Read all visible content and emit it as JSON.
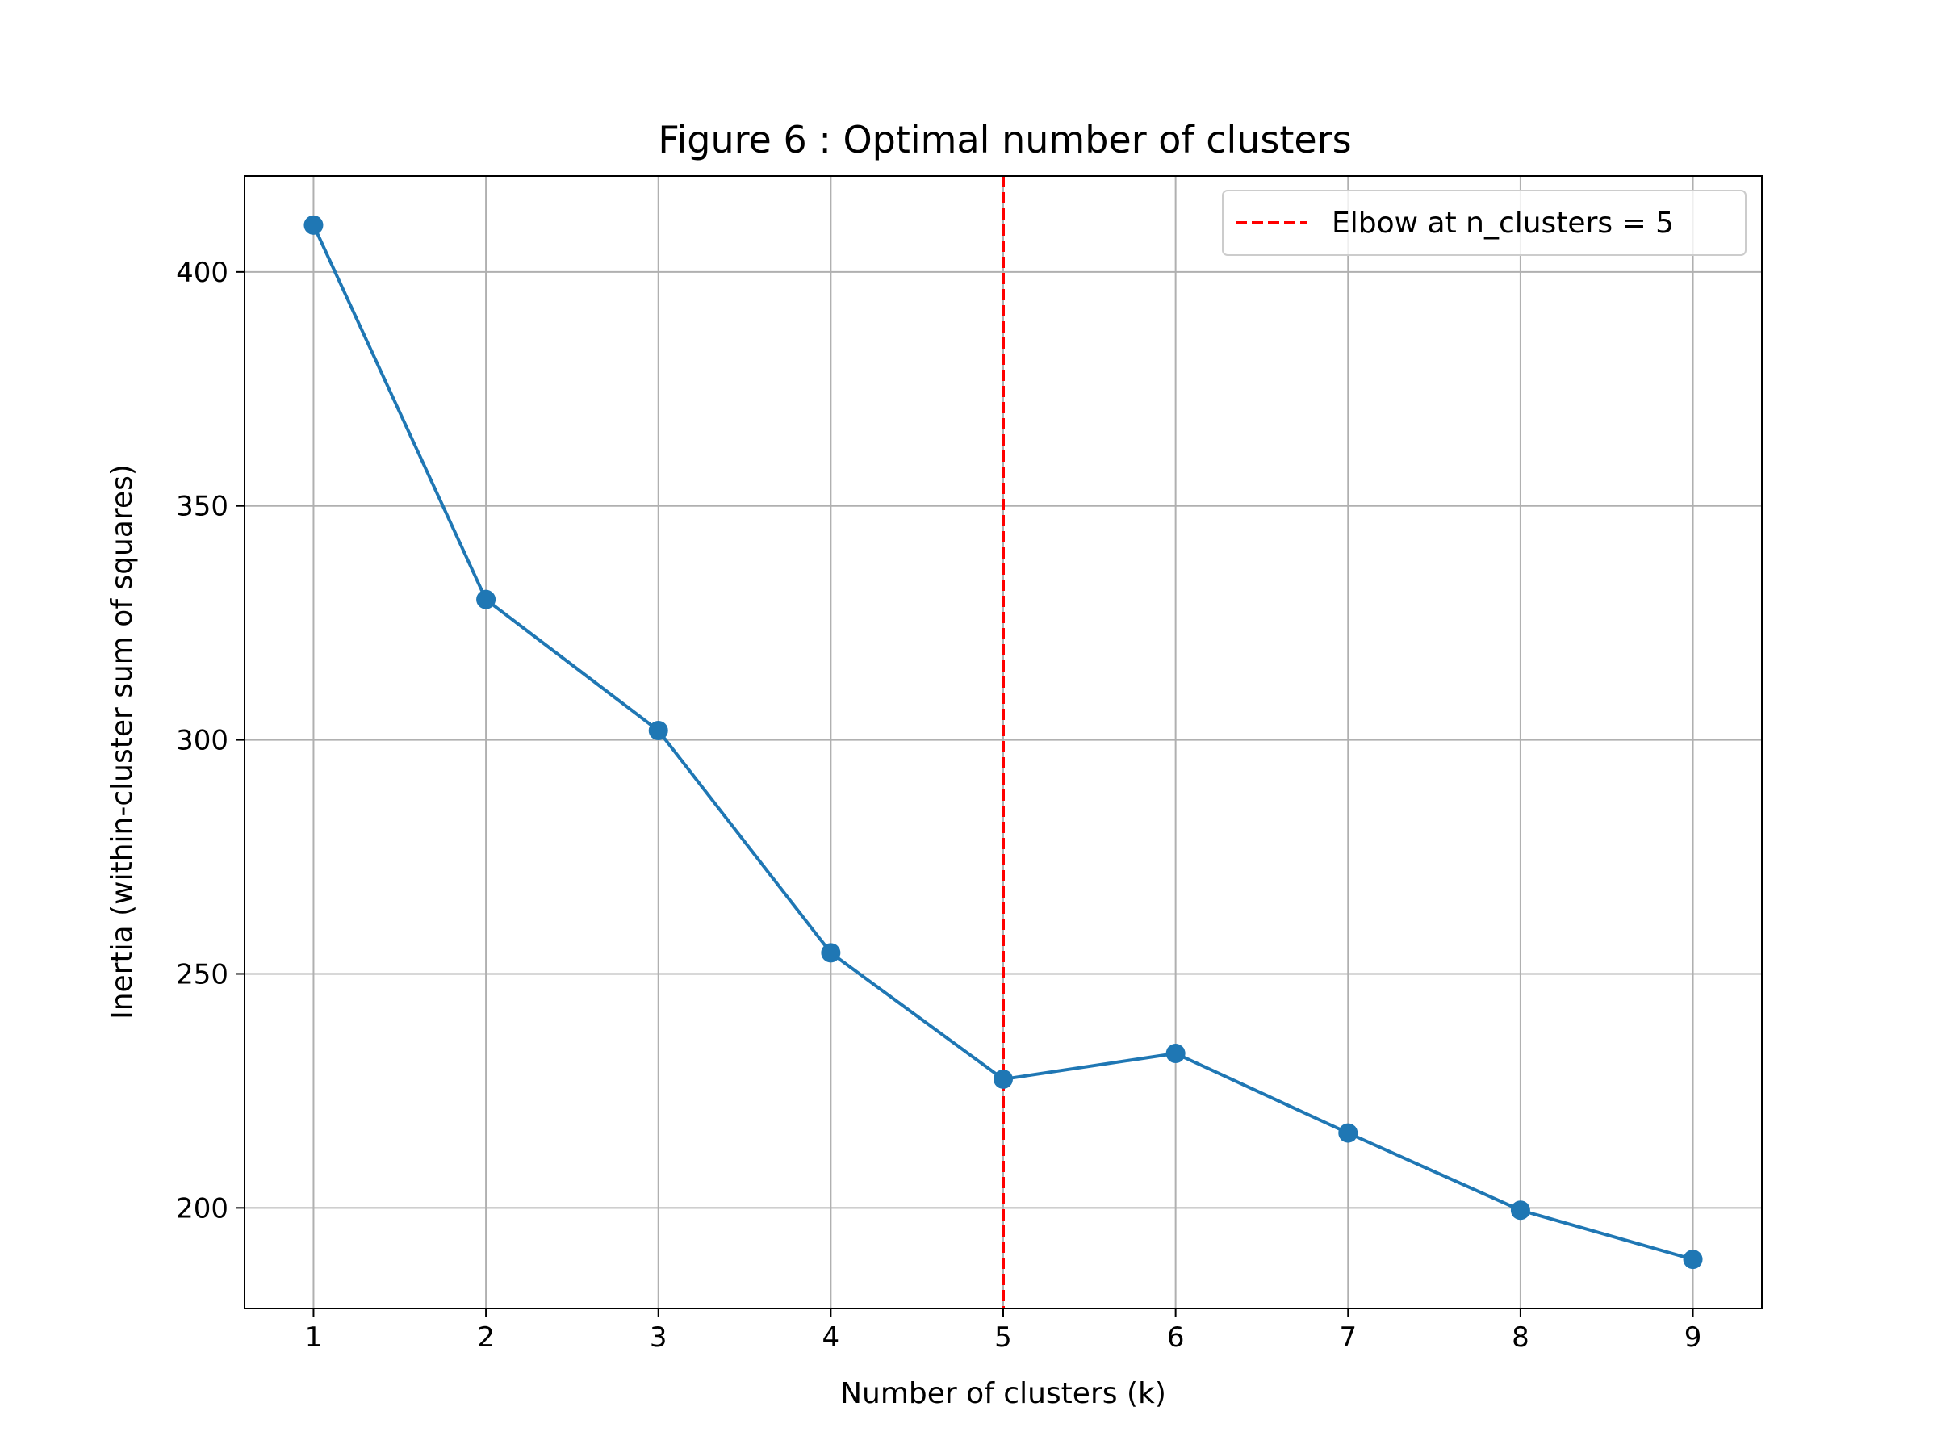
{
  "chart_data": {
    "type": "line",
    "title": "Figure 6 : Optimal number of clusters",
    "xlabel": "Number of clusters (k)",
    "ylabel": "Inertia (within-cluster sum of squares)",
    "x": [
      1,
      2,
      3,
      4,
      5,
      6,
      7,
      8,
      9
    ],
    "series": [
      {
        "values": [
          410,
          330,
          302,
          254.5,
          227.5,
          233,
          216,
          199.5,
          189
        ],
        "color": "#1f77b4",
        "marker": "circle"
      }
    ],
    "xlim": [
      0.6,
      9.4
    ],
    "ylim": [
      178.5,
      420.5
    ],
    "xticks": [
      1,
      2,
      3,
      4,
      5,
      6,
      7,
      8,
      9
    ],
    "yticks": [
      200,
      250,
      300,
      350,
      400
    ],
    "grid": true,
    "reference_line": {
      "orientation": "vertical",
      "x": 5,
      "color": "#ff0000",
      "style": "dashed",
      "label": "Elbow at n_clusters = 5"
    },
    "legend": {
      "placement": "top-right",
      "entries": [
        "Elbow at n_clusters = 5"
      ]
    }
  }
}
